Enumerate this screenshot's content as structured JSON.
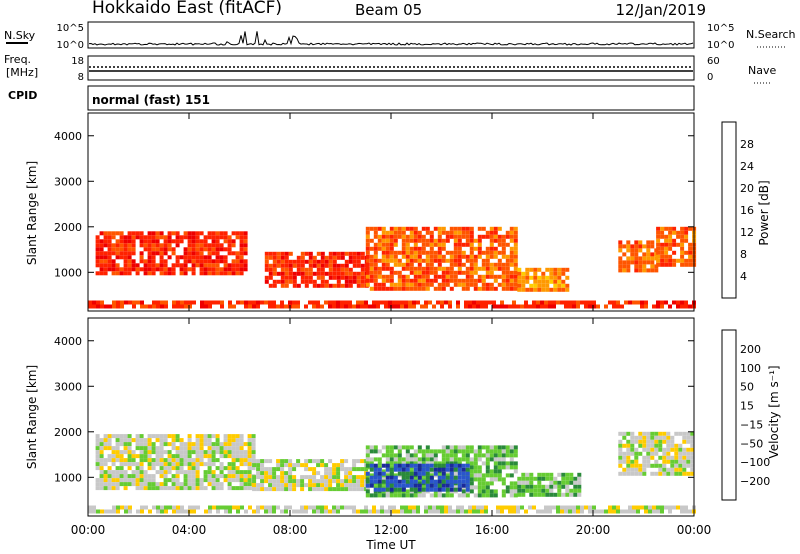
{
  "header": {
    "title": "Hokkaido East (fitACF)",
    "beam": "Beam 05",
    "date": "12/Jan/2019"
  },
  "nsky_panel": {
    "left_label": "N.Sky",
    "left_ticks": [
      "10^5",
      "10^0"
    ],
    "right_ticks": [
      "10^5",
      "10^0"
    ],
    "right_label": "N.Search"
  },
  "freq_panel": {
    "left_label_1": "Freq.",
    "left_label_2": "[MHz]",
    "left_ticks": [
      "18",
      "8"
    ],
    "right_ticks": [
      "60",
      "0"
    ],
    "right_label": "Nave"
  },
  "cpid": {
    "label": "CPID",
    "value": "normal (fast) 151"
  },
  "power_panel": {
    "ylabel": "Slant Range [km]",
    "yticks": [
      "4000",
      "3000",
      "2000",
      "1000"
    ],
    "colorbar_label": "Power [dB]",
    "colorbar_ticks": [
      "28",
      "24",
      "20",
      "16",
      "12",
      "8",
      "4"
    ]
  },
  "velocity_panel": {
    "ylabel": "Slant Range [km]",
    "yticks": [
      "4000",
      "3000",
      "2000",
      "1000"
    ],
    "colorbar_label": "Velocity [m s⁻¹]",
    "colorbar_ticks": [
      "200",
      "100",
      "50",
      "15",
      "−15",
      "−50",
      "−100",
      "−200"
    ]
  },
  "x_axis": {
    "ticks": [
      "00:00",
      "04:00",
      "08:00",
      "12:00",
      "16:00",
      "20:00",
      "00:00"
    ],
    "label": "Time UT"
  },
  "chart_data": {
    "type": "heatmap",
    "x_range_hours": [
      0,
      24
    ],
    "y_range_km": [
      150,
      4500
    ],
    "power_colors": [
      "#0033ff",
      "#2255aa",
      "#3a8a3a",
      "#66cc33",
      "#ffcc00",
      "#ff9900",
      "#ff5500",
      "#ff2200",
      "#ee0000"
    ],
    "velocity_colors": [
      "#1a2a99",
      "#2a55cc",
      "#2a8a3a",
      "#66cc33",
      "#c8c8c8",
      "#ffcc00",
      "#ff9900",
      "#ff5500",
      "#ee0000"
    ],
    "power_blobs": [
      {
        "t0": 0.3,
        "t1": 6.3,
        "r0": 950,
        "r1": 1900,
        "level": 7
      },
      {
        "t0": 7.0,
        "t1": 11.0,
        "r0": 700,
        "r1": 1450,
        "level": 7
      },
      {
        "t0": 11.0,
        "t1": 17.0,
        "r0": 600,
        "r1": 2000,
        "level": 6
      },
      {
        "t0": 17.0,
        "t1": 19.0,
        "r0": 600,
        "r1": 1100,
        "level": 5
      },
      {
        "t0": 21.0,
        "t1": 22.5,
        "r0": 1000,
        "r1": 1700,
        "level": 6
      },
      {
        "t0": 22.5,
        "t1": 24.0,
        "r0": 1200,
        "r1": 2000,
        "level": 6
      },
      {
        "t0": 0.0,
        "t1": 24.0,
        "r0": 250,
        "r1": 380,
        "level": 7
      }
    ],
    "velocity_blobs": [
      {
        "t0": 0.3,
        "t1": 6.5,
        "r0": 800,
        "r1": 1950,
        "level": 4
      },
      {
        "t0": 6.5,
        "t1": 11.0,
        "r0": 700,
        "r1": 1400,
        "level": 4
      },
      {
        "t0": 11.0,
        "t1": 17.0,
        "r0": 600,
        "r1": 1700,
        "level": 3
      },
      {
        "t0": 11.0,
        "t1": 15.0,
        "r0": 700,
        "r1": 1300,
        "level": 1
      },
      {
        "t0": 17.0,
        "t1": 19.5,
        "r0": 650,
        "r1": 1100,
        "level": 3
      },
      {
        "t0": 21.0,
        "t1": 24.0,
        "r0": 1100,
        "r1": 2000,
        "level": 4
      },
      {
        "t0": 0.0,
        "t1": 24.0,
        "r0": 250,
        "r1": 380,
        "level": 4
      }
    ]
  }
}
